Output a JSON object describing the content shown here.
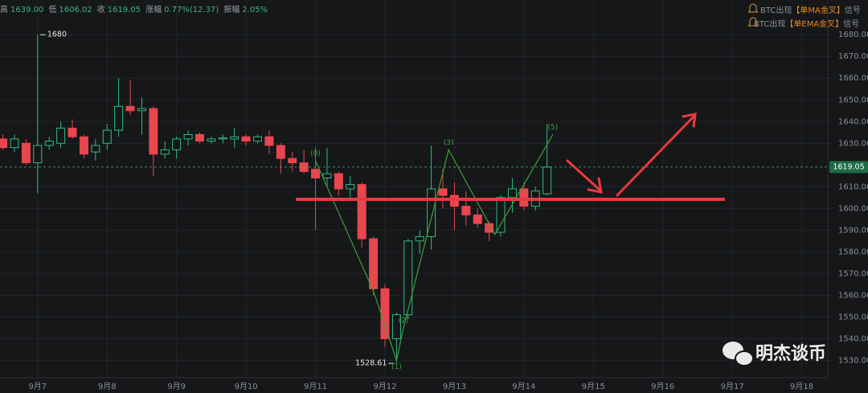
{
  "chart_data": {
    "type": "candlestick",
    "header": [
      {
        "label": "高",
        "value": "1639.00"
      },
      {
        "label": "低",
        "value": "1606.02"
      },
      {
        "label": "收",
        "value": "1619.05"
      },
      {
        "label": "涨幅",
        "value": "0.77%(12.37)"
      },
      {
        "label": "振幅",
        "value": "2.05%"
      }
    ],
    "signals": [
      {
        "prefix": "BTC出现",
        "name": "【单MA金叉】",
        "suffix": "信号"
      },
      {
        "prefix": "BTC出现",
        "name": "【单EMA金叉】",
        "suffix": "信号"
      }
    ],
    "watermark": "明杰谈币",
    "x": [
      0,
      1,
      2,
      3,
      4,
      5,
      6,
      7,
      8,
      9,
      10,
      11,
      12,
      13,
      14,
      15,
      16,
      17,
      18,
      19,
      20,
      21,
      22,
      23,
      24,
      25,
      26,
      27,
      28,
      29,
      30,
      31,
      32,
      33,
      34,
      35,
      36,
      37,
      38,
      39,
      40,
      41,
      42,
      43,
      44,
      45,
      46,
      47
    ],
    "open": [
      1632,
      1628,
      1630,
      1621,
      1629,
      1630,
      1637,
      1633,
      1626,
      1630,
      1636,
      1647,
      1645,
      1646,
      1625,
      1627,
      1632,
      1634,
      1631,
      1632,
      1632,
      1633,
      1631,
      1633,
      1629,
      1623,
      1621,
      1618,
      1614,
      1616,
      1609,
      1611,
      1586,
      1563,
      1540,
      1551,
      1585,
      1587,
      1609,
      1606,
      1601,
      1597,
      1593,
      1589,
      1605,
      1609,
      1601,
      1606.68
    ],
    "high": [
      1634,
      1634,
      1632,
      1680,
      1633,
      1640,
      1641,
      1634,
      1632,
      1639,
      1660,
      1659,
      1651,
      1647,
      1631,
      1633,
      1636,
      1635,
      1633,
      1634,
      1637,
      1634,
      1634,
      1636,
      1630,
      1626,
      1627,
      1628,
      1628,
      1617,
      1615,
      1612,
      1587,
      1565,
      1552,
      1586,
      1590,
      1629,
      1618,
      1612,
      1608,
      1600,
      1594,
      1606,
      1614,
      1612,
      1610,
      1639
    ],
    "low": [
      1627,
      1626,
      1620,
      1607,
      1627,
      1628,
      1632,
      1623,
      1622,
      1627,
      1633,
      1643,
      1634,
      1615,
      1623,
      1623,
      1629,
      1630,
      1630,
      1630,
      1628,
      1629,
      1630,
      1625,
      1616,
      1617,
      1616,
      1590,
      1610,
      1606,
      1604,
      1582,
      1560,
      1536,
      1528.61,
      1549,
      1579,
      1581,
      1600,
      1590,
      1592,
      1591,
      1585,
      1587,
      1598,
      1599,
      1599,
      1606.02
    ],
    "close": [
      1628,
      1632,
      1621,
      1629,
      1631,
      1637,
      1633,
      1625,
      1629,
      1636,
      1647,
      1645,
      1646,
      1625,
      1627,
      1632,
      1634,
      1631,
      1632,
      1632.5,
      1633,
      1631,
      1633,
      1629,
      1623,
      1621,
      1617,
      1614,
      1616,
      1609,
      1611,
      1586,
      1563,
      1540,
      1551,
      1585,
      1587,
      1609,
      1606,
      1601,
      1597,
      1593,
      1589,
      1605,
      1609,
      1601,
      1608,
      1619.05
    ],
    "up_color": "#2ebd85",
    "down_color": "#e8474f",
    "wave": {
      "x": [
        27,
        32,
        34,
        34.6,
        38.5,
        42.5,
        47.5
      ],
      "y": [
        1622,
        1562,
        1530,
        1545,
        1627,
        1588,
        1634
      ],
      "labels": [
        "(0)",
        null,
        "(1)",
        "(2)",
        "(3)",
        null,
        "(5)"
      ],
      "color": "#3f9e3a"
    },
    "xlim": [
      -0.25,
      71.25
    ],
    "ylim": [
      1522,
      1696
    ],
    "xticks": [
      {
        "value": 3,
        "label": "9月7"
      },
      {
        "value": 9,
        "label": "9月8"
      },
      {
        "value": 15,
        "label": "9月9"
      },
      {
        "value": 21,
        "label": "9月10"
      },
      {
        "value": 27,
        "label": "9月11"
      },
      {
        "value": 33,
        "label": "9月12"
      },
      {
        "value": 39,
        "label": "9月13"
      },
      {
        "value": 45,
        "label": "9月14"
      },
      {
        "value": 51,
        "label": "9月15"
      },
      {
        "value": 57,
        "label": "9月16"
      },
      {
        "value": 63,
        "label": "9月17"
      },
      {
        "value": 69,
        "label": "9月18"
      }
    ],
    "yticks": [
      {
        "value": 1530,
        "label": "1530.00"
      },
      {
        "value": 1540,
        "label": "1540.00"
      },
      {
        "value": 1550,
        "label": "1550.00"
      },
      {
        "value": 1560,
        "label": "1560.00"
      },
      {
        "value": 1570,
        "label": "1570.00"
      },
      {
        "value": 1580,
        "label": "1580.00"
      },
      {
        "value": 1590,
        "label": "1590.00"
      },
      {
        "value": 1600,
        "label": "1600.00"
      },
      {
        "value": 1610,
        "label": "1610.00"
      },
      {
        "value": 1630,
        "label": "1630.00"
      },
      {
        "value": 1640,
        "label": "1640.00"
      },
      {
        "value": 1650,
        "label": "1650.00"
      },
      {
        "value": 1660,
        "label": "1660.00"
      },
      {
        "value": 1670,
        "label": "1670.00"
      },
      {
        "value": 1680,
        "label": "1680.00"
      }
    ],
    "grid": true
  }
}
